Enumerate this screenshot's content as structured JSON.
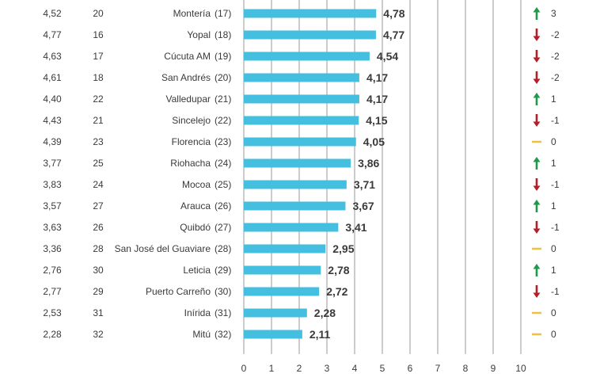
{
  "chart_data": {
    "type": "bar",
    "orientation": "horizontal",
    "xlim": [
      0,
      10
    ],
    "xticks": [
      "0",
      "1",
      "2",
      "3",
      "4",
      "5",
      "6",
      "7",
      "8",
      "9",
      "10"
    ],
    "grid": true,
    "bar_color": "#44bfe0",
    "rows": [
      {
        "prev_score": "4,52",
        "prev_rank": "20",
        "city": "Montería",
        "rank": "(17)",
        "value": 4.78,
        "label": "4,78",
        "change": "3",
        "trend": "up"
      },
      {
        "prev_score": "4,77",
        "prev_rank": "16",
        "city": "Yopal",
        "rank": "(18)",
        "value": 4.77,
        "label": "4,77",
        "change": "-2",
        "trend": "down"
      },
      {
        "prev_score": "4,63",
        "prev_rank": "17",
        "city": "Cúcuta AM",
        "rank": "(19)",
        "value": 4.54,
        "label": "4,54",
        "change": "-2",
        "trend": "down"
      },
      {
        "prev_score": "4,61",
        "prev_rank": "18",
        "city": "San Andrés",
        "rank": "(20)",
        "value": 4.17,
        "label": "4,17",
        "change": "-2",
        "trend": "down"
      },
      {
        "prev_score": "4,40",
        "prev_rank": "22",
        "city": "Valledupar",
        "rank": "(21)",
        "value": 4.17,
        "label": "4,17",
        "change": "1",
        "trend": "up"
      },
      {
        "prev_score": "4,43",
        "prev_rank": "21",
        "city": "Sincelejo",
        "rank": "(22)",
        "value": 4.15,
        "label": "4,15",
        "change": "-1",
        "trend": "down"
      },
      {
        "prev_score": "4,39",
        "prev_rank": "23",
        "city": "Florencia",
        "rank": "(23)",
        "value": 4.05,
        "label": "4,05",
        "change": "0",
        "trend": "same"
      },
      {
        "prev_score": "3,77",
        "prev_rank": "25",
        "city": "Riohacha",
        "rank": "(24)",
        "value": 3.86,
        "label": "3,86",
        "change": "1",
        "trend": "up"
      },
      {
        "prev_score": "3,83",
        "prev_rank": "24",
        "city": "Mocoa",
        "rank": "(25)",
        "value": 3.71,
        "label": "3,71",
        "change": "-1",
        "trend": "down"
      },
      {
        "prev_score": "3,57",
        "prev_rank": "27",
        "city": "Arauca",
        "rank": "(26)",
        "value": 3.67,
        "label": "3,67",
        "change": "1",
        "trend": "up"
      },
      {
        "prev_score": "3,63",
        "prev_rank": "26",
        "city": "Quibdó",
        "rank": "(27)",
        "value": 3.41,
        "label": "3,41",
        "change": "-1",
        "trend": "down"
      },
      {
        "prev_score": "3,36",
        "prev_rank": "28",
        "city": "San José del Guaviare",
        "rank": "(28)",
        "value": 2.95,
        "label": "2,95",
        "change": "0",
        "trend": "same"
      },
      {
        "prev_score": "2,76",
        "prev_rank": "30",
        "city": "Leticia",
        "rank": "(29)",
        "value": 2.78,
        "label": "2,78",
        "change": "1",
        "trend": "up"
      },
      {
        "prev_score": "2,77",
        "prev_rank": "29",
        "city": "Puerto Carreño",
        "rank": "(30)",
        "value": 2.72,
        "label": "2,72",
        "change": "-1",
        "trend": "down"
      },
      {
        "prev_score": "2,53",
        "prev_rank": "31",
        "city": "Inírida",
        "rank": "(31)",
        "value": 2.28,
        "label": "2,28",
        "change": "0",
        "trend": "same"
      },
      {
        "prev_score": "2,28",
        "prev_rank": "32",
        "city": "Mitú",
        "rank": "(32)",
        "value": 2.11,
        "label": "2,11",
        "change": "0",
        "trend": "same"
      }
    ],
    "trend_colors": {
      "up": "#1f9a4a",
      "down": "#b3202a",
      "same": "#f0c040"
    }
  }
}
